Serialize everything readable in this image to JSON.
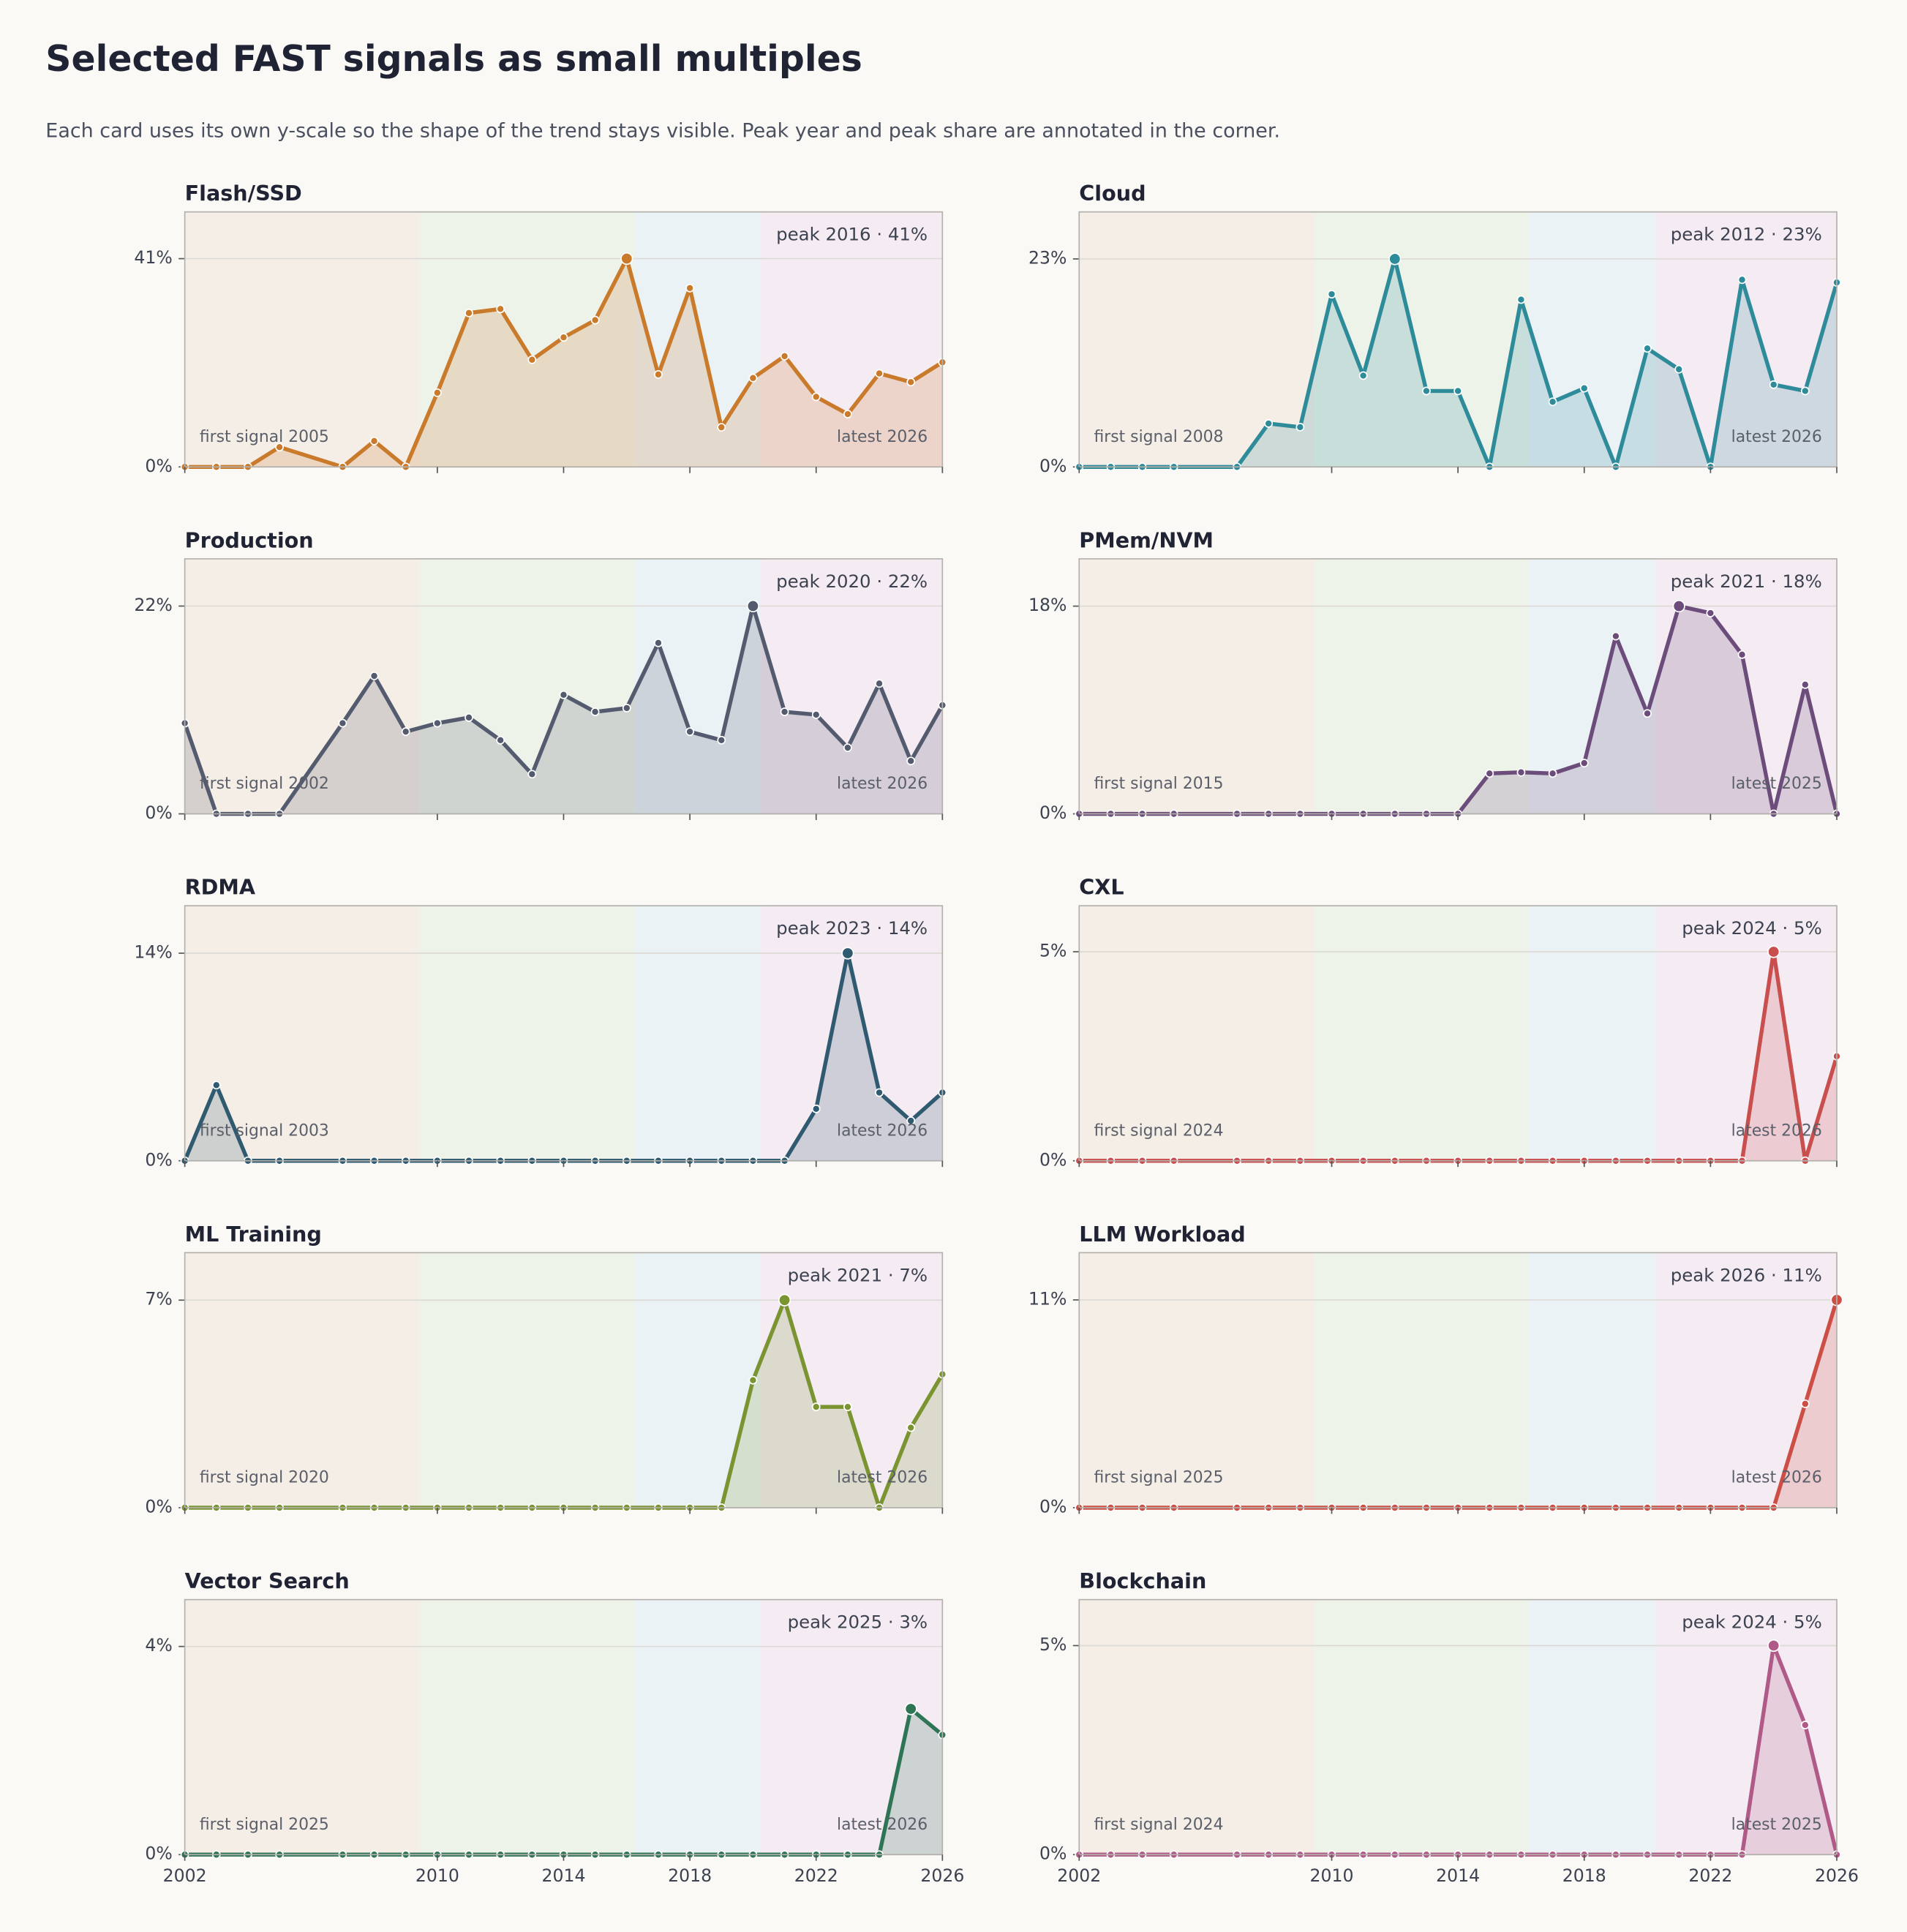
{
  "title": "Selected FAST signals as small multiples",
  "subtitle": "Each card uses its own y-scale so the shape of the trend stays visible. Peak year and peak share are annotated in the corner.",
  "chart_data": [
    {
      "type": "line",
      "title": "Flash/SSD",
      "color": "#c97a2b",
      "grid": true,
      "x": [
        2002,
        2003,
        2004,
        2005,
        2007,
        2008,
        2009,
        2010,
        2011,
        2012,
        2013,
        2014,
        2015,
        2016,
        2017,
        2018,
        2019,
        2020,
        2021,
        2022,
        2023,
        2024,
        2025,
        2026
      ],
      "values": [
        0,
        0,
        0,
        3.9,
        0,
        5.1,
        0,
        14.6,
        30.3,
        31.1,
        21.1,
        25.5,
        28.9,
        41,
        18.2,
        35.2,
        7.8,
        17.5,
        21.8,
        13.8,
        10.4,
        18.4,
        16.7,
        20.6
      ],
      "xlim": [
        2002,
        2026
      ],
      "xticks": [
        2002,
        2010,
        2014,
        2018,
        2022,
        2026
      ],
      "ylim": [
        0,
        50.2
      ],
      "yticks": [
        {
          "value": 0,
          "label": "0%"
        },
        {
          "value": 41,
          "label": "41%"
        }
      ],
      "annotations": {
        "peak": "peak 2016 · 41%",
        "first": "first signal 2005",
        "latest": "latest 2026"
      }
    },
    {
      "type": "line",
      "title": "Cloud",
      "color": "#2e8b9a",
      "grid": true,
      "x": [
        2002,
        2003,
        2004,
        2005,
        2007,
        2008,
        2009,
        2010,
        2011,
        2012,
        2013,
        2014,
        2015,
        2016,
        2017,
        2018,
        2019,
        2020,
        2021,
        2022,
        2023,
        2024,
        2025,
        2026
      ],
      "values": [
        0,
        0,
        0,
        0,
        0,
        4.8,
        4.4,
        19.1,
        10.1,
        23,
        8.4,
        8.4,
        0,
        18.5,
        7.2,
        8.7,
        0,
        13.1,
        10.8,
        0,
        20.7,
        9.1,
        8.4,
        20.4
      ],
      "xlim": [
        2002,
        2026
      ],
      "xticks": [
        2002,
        2010,
        2014,
        2018,
        2022,
        2026
      ],
      "ylim": [
        0,
        28.2
      ],
      "yticks": [
        {
          "value": 0,
          "label": "0%"
        },
        {
          "value": 23,
          "label": "23%"
        }
      ],
      "annotations": {
        "peak": "peak 2012 · 23%",
        "first": "first signal 2008",
        "latest": "latest 2026"
      }
    },
    {
      "type": "line",
      "title": "Production",
      "color": "#555b6e",
      "grid": true,
      "x": [
        2002,
        2003,
        2004,
        2005,
        2007,
        2008,
        2009,
        2010,
        2011,
        2012,
        2013,
        2014,
        2015,
        2016,
        2017,
        2018,
        2019,
        2020,
        2021,
        2022,
        2023,
        2024,
        2025,
        2026
      ],
      "values": [
        9.6,
        0,
        0,
        0,
        9.6,
        14.6,
        8.7,
        9.6,
        10.2,
        7.8,
        4.2,
        12.6,
        10.8,
        11.2,
        18.1,
        8.7,
        7.8,
        22,
        10.8,
        10.5,
        7.0,
        13.8,
        5.6,
        11.5
      ],
      "xlim": [
        2002,
        2026
      ],
      "xticks": [
        2002,
        2010,
        2014,
        2018,
        2022,
        2026
      ],
      "ylim": [
        0,
        27
      ],
      "yticks": [
        {
          "value": 0,
          "label": "0%"
        },
        {
          "value": 22,
          "label": "22%"
        }
      ],
      "annotations": {
        "peak": "peak 2020 · 22%",
        "first": "first signal 2002",
        "latest": "latest 2026"
      }
    },
    {
      "type": "line",
      "title": "PMem/NVM",
      "color": "#6b4c7a",
      "grid": true,
      "x": [
        2002,
        2003,
        2004,
        2005,
        2007,
        2008,
        2009,
        2010,
        2011,
        2012,
        2013,
        2014,
        2015,
        2016,
        2017,
        2018,
        2019,
        2020,
        2021,
        2022,
        2023,
        2024,
        2025,
        2026
      ],
      "values": [
        0,
        0,
        0,
        0,
        0,
        0,
        0,
        0,
        0,
        0,
        0,
        0,
        3.5,
        3.6,
        3.5,
        4.4,
        15.4,
        8.7,
        18,
        17.4,
        13.8,
        0,
        11.2,
        0
      ],
      "xlim": [
        2002,
        2026
      ],
      "xticks": [
        2002,
        2010,
        2014,
        2018,
        2022,
        2026
      ],
      "ylim": [
        0,
        22.1
      ],
      "yticks": [
        {
          "value": 0,
          "label": "0%"
        },
        {
          "value": 18,
          "label": "18%"
        }
      ],
      "annotations": {
        "peak": "peak 2021 · 18%",
        "first": "first signal 2015",
        "latest": "latest 2025"
      }
    },
    {
      "type": "line",
      "title": "RDMA",
      "color": "#2f5a70",
      "grid": true,
      "x": [
        2002,
        2003,
        2004,
        2005,
        2007,
        2008,
        2009,
        2010,
        2011,
        2012,
        2013,
        2014,
        2015,
        2016,
        2017,
        2018,
        2019,
        2020,
        2021,
        2022,
        2023,
        2024,
        2025,
        2026
      ],
      "values": [
        0,
        5.1,
        0,
        0,
        0,
        0,
        0,
        0,
        0,
        0,
        0,
        0,
        0,
        0,
        0,
        0,
        0,
        0,
        0,
        3.5,
        14,
        4.6,
        2.7,
        4.6
      ],
      "xlim": [
        2002,
        2026
      ],
      "xticks": [
        2002,
        2010,
        2014,
        2018,
        2022,
        2026
      ],
      "ylim": [
        0,
        17.2
      ],
      "yticks": [
        {
          "value": 0,
          "label": "0%"
        },
        {
          "value": 14,
          "label": "14%"
        }
      ],
      "annotations": {
        "peak": "peak 2023 · 14%",
        "first": "first signal 2003",
        "latest": "latest 2026"
      }
    },
    {
      "type": "line",
      "title": "CXL",
      "color": "#c94f4f",
      "grid": true,
      "x": [
        2002,
        2003,
        2004,
        2005,
        2007,
        2008,
        2009,
        2010,
        2011,
        2012,
        2013,
        2014,
        2015,
        2016,
        2017,
        2018,
        2019,
        2020,
        2021,
        2022,
        2023,
        2024,
        2025,
        2026
      ],
      "values": [
        0,
        0,
        0,
        0,
        0,
        0,
        0,
        0,
        0,
        0,
        0,
        0,
        0,
        0,
        0,
        0,
        0,
        0,
        0,
        0,
        0,
        5,
        0,
        2.5
      ],
      "xlim": [
        2002,
        2026
      ],
      "xticks": [
        2002,
        2010,
        2014,
        2018,
        2022,
        2026
      ],
      "ylim": [
        0,
        6.1
      ],
      "yticks": [
        {
          "value": 0,
          "label": "0%"
        },
        {
          "value": 5,
          "label": "5%"
        }
      ],
      "annotations": {
        "peak": "peak 2024 · 5%",
        "first": "first signal 2024",
        "latest": "latest 2026"
      }
    },
    {
      "type": "line",
      "title": "ML Training",
      "color": "#7a9432",
      "grid": true,
      "x": [
        2002,
        2003,
        2004,
        2005,
        2007,
        2008,
        2009,
        2010,
        2011,
        2012,
        2013,
        2014,
        2015,
        2016,
        2017,
        2018,
        2019,
        2020,
        2021,
        2022,
        2023,
        2024,
        2025,
        2026
      ],
      "values": [
        0,
        0,
        0,
        0,
        0,
        0,
        0,
        0,
        0,
        0,
        0,
        0,
        0,
        0,
        0,
        0,
        0,
        4.3,
        7,
        3.4,
        3.4,
        0,
        2.7,
        4.5
      ],
      "xlim": [
        2002,
        2026
      ],
      "xticks": [
        2002,
        2010,
        2014,
        2018,
        2022,
        2026
      ],
      "ylim": [
        0,
        8.6
      ],
      "yticks": [
        {
          "value": 0,
          "label": "0%"
        },
        {
          "value": 7,
          "label": "7%"
        }
      ],
      "annotations": {
        "peak": "peak 2021 · 7%",
        "first": "first signal 2020",
        "latest": "latest 2026"
      }
    },
    {
      "type": "line",
      "title": "LLM Workload",
      "color": "#cc4e45",
      "grid": true,
      "x": [
        2002,
        2003,
        2004,
        2005,
        2007,
        2008,
        2009,
        2010,
        2011,
        2012,
        2013,
        2014,
        2015,
        2016,
        2017,
        2018,
        2019,
        2020,
        2021,
        2022,
        2023,
        2024,
        2025,
        2026
      ],
      "values": [
        0,
        0,
        0,
        0,
        0,
        0,
        0,
        0,
        0,
        0,
        0,
        0,
        0,
        0,
        0,
        0,
        0,
        0,
        0,
        0,
        0,
        0,
        5.5,
        11
      ],
      "xlim": [
        2002,
        2026
      ],
      "xticks": [
        2002,
        2010,
        2014,
        2018,
        2022,
        2026
      ],
      "ylim": [
        0,
        13.5
      ],
      "yticks": [
        {
          "value": 0,
          "label": "0%"
        },
        {
          "value": 11,
          "label": "11%"
        }
      ],
      "annotations": {
        "peak": "peak 2026 · 11%",
        "first": "first signal 2025",
        "latest": "latest 2026"
      }
    },
    {
      "type": "line",
      "title": "Vector Search",
      "color": "#2e7556",
      "grid": true,
      "x": [
        2002,
        2003,
        2004,
        2005,
        2007,
        2008,
        2009,
        2010,
        2011,
        2012,
        2013,
        2014,
        2015,
        2016,
        2017,
        2018,
        2019,
        2020,
        2021,
        2022,
        2023,
        2024,
        2025,
        2026
      ],
      "values": [
        0,
        0,
        0,
        0,
        0,
        0,
        0,
        0,
        0,
        0,
        0,
        0,
        0,
        0,
        0,
        0,
        0,
        0,
        0,
        0,
        0,
        0,
        2.8,
        2.3
      ],
      "xlim": [
        2002,
        2026
      ],
      "xticks": [
        2002,
        2010,
        2014,
        2018,
        2022,
        2026
      ],
      "ylim": [
        0,
        4.9
      ],
      "yticks": [
        {
          "value": 0,
          "label": "0%"
        },
        {
          "value": 4,
          "label": "4%"
        }
      ],
      "annotations": {
        "peak": "peak 2025 · 3%",
        "first": "first signal 2025",
        "latest": "latest 2026"
      }
    },
    {
      "type": "line",
      "title": "Blockchain",
      "color": "#b05a88",
      "grid": true,
      "x": [
        2002,
        2003,
        2004,
        2005,
        2007,
        2008,
        2009,
        2010,
        2011,
        2012,
        2013,
        2014,
        2015,
        2016,
        2017,
        2018,
        2019,
        2020,
        2021,
        2022,
        2023,
        2024,
        2025,
        2026
      ],
      "values": [
        0,
        0,
        0,
        0,
        0,
        0,
        0,
        0,
        0,
        0,
        0,
        0,
        0,
        0,
        0,
        0,
        0,
        0,
        0,
        0,
        0,
        5,
        3.1,
        0
      ],
      "xlim": [
        2002,
        2026
      ],
      "xticks": [
        2002,
        2010,
        2014,
        2018,
        2022,
        2026
      ],
      "ylim": [
        0,
        6.1
      ],
      "yticks": [
        {
          "value": 0,
          "label": "0%"
        },
        {
          "value": 5,
          "label": "5%"
        }
      ],
      "annotations": {
        "peak": "peak 2024 · 5%",
        "first": "first signal 2024",
        "latest": "latest 2025"
      }
    }
  ]
}
